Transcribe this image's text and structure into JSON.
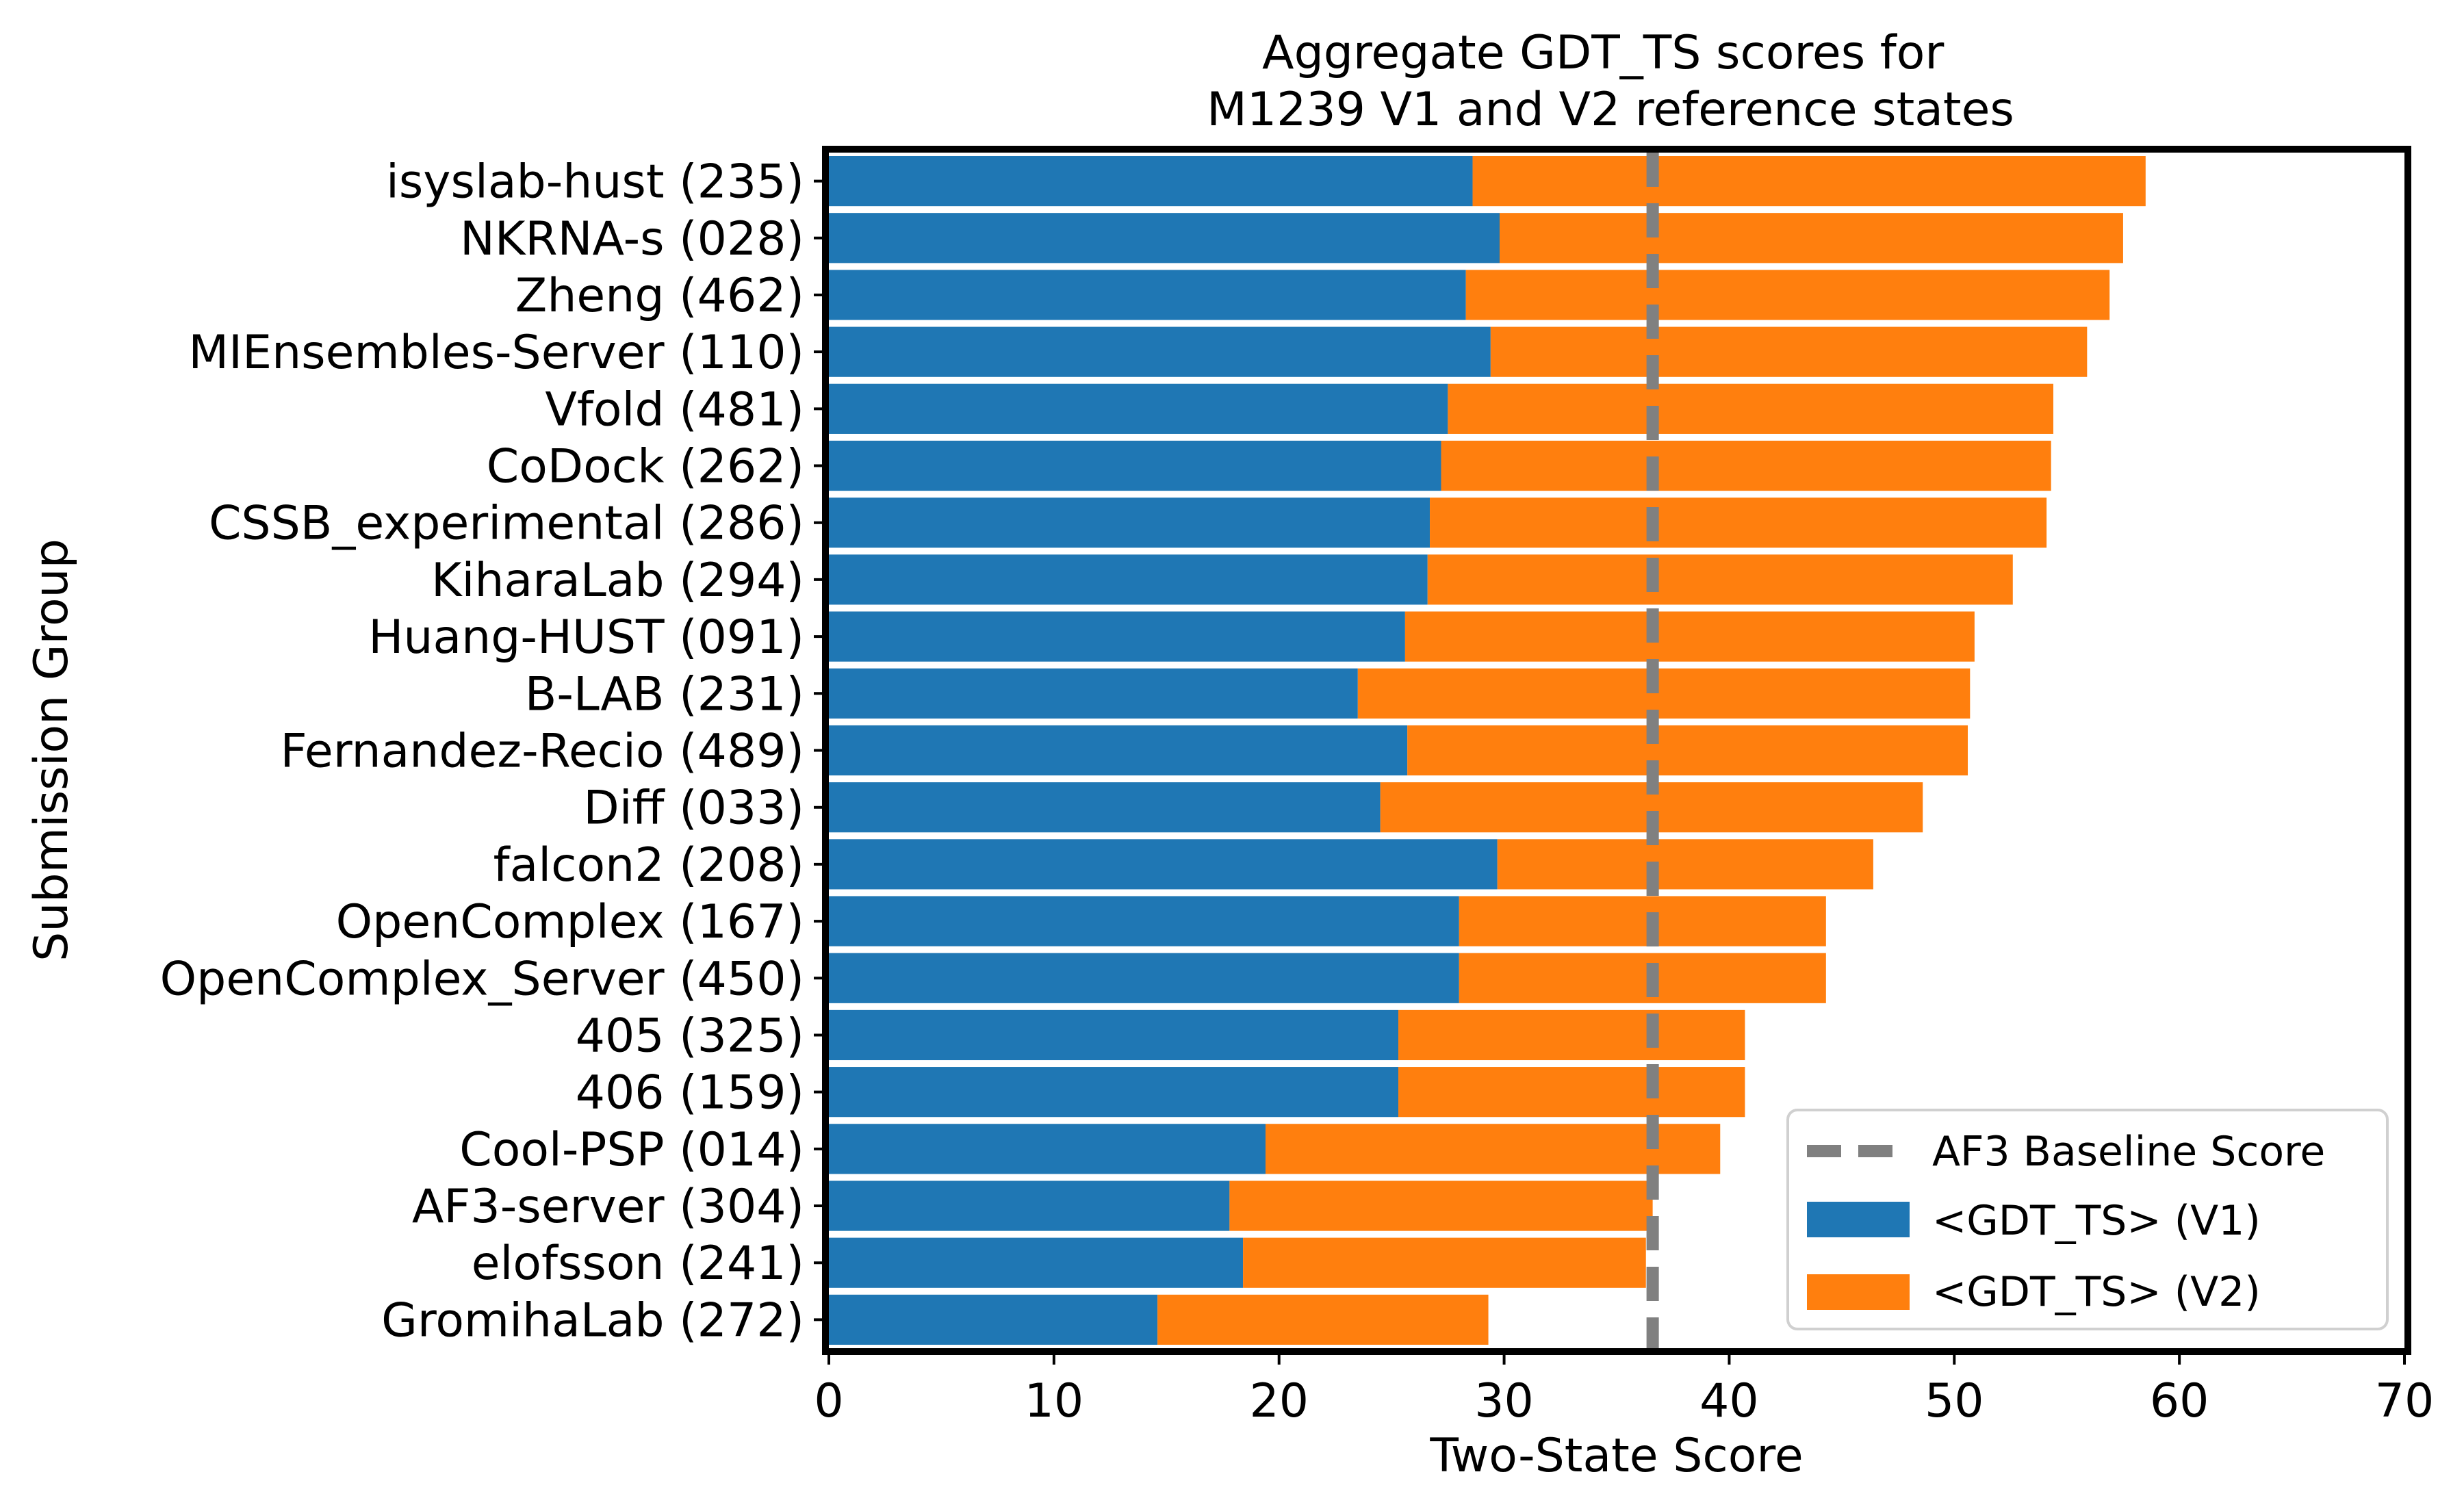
{
  "chart_data": {
    "type": "bar",
    "orientation": "horizontal",
    "stacked": true,
    "title": "Aggregate GDT_TS scores for\nM1239 V1 and V2 reference states",
    "title_lines": [
      "Aggregate GDT_TS scores for",
      "M1239 V1 and V2 reference states"
    ],
    "xlabel": "Two-State Score",
    "ylabel": "Submission Group",
    "xlim": [
      0,
      70
    ],
    "xticks": [
      0,
      10,
      20,
      30,
      40,
      50,
      60,
      70
    ],
    "categories": [
      "isyslab-hust (235)",
      "NKRNA-s (028)",
      "Zheng (462)",
      "MIEnsembles-Server (110)",
      "Vfold (481)",
      "CoDock (262)",
      "CSSB_experimental (286)",
      "KiharaLab (294)",
      "Huang-HUST (091)",
      "B-LAB (231)",
      "Fernandez-Recio (489)",
      "Diff (033)",
      "falcon2 (208)",
      "OpenComplex (167)",
      "OpenComplex_Server (450)",
      "405 (325)",
      "406 (159)",
      "Cool-PSP (014)",
      "AF3-server (304)",
      "elofsson (241)",
      "GromihaLab (272)"
    ],
    "series": [
      {
        "name": "<GDT_TS> (V1)",
        "color": "#1f77b4",
        "values": [
          28.6,
          29.8,
          28.3,
          29.4,
          27.5,
          27.2,
          26.7,
          26.6,
          25.6,
          23.5,
          25.7,
          24.5,
          29.7,
          28.0,
          28.0,
          25.3,
          25.3,
          19.4,
          17.8,
          18.4,
          14.6
        ]
      },
      {
        "name": "<GDT_TS> (V2)",
        "color": "#ff7f0e",
        "values": [
          29.9,
          27.7,
          28.6,
          26.5,
          26.9,
          27.1,
          27.4,
          26.0,
          25.3,
          27.2,
          24.9,
          24.1,
          16.7,
          16.3,
          16.3,
          15.4,
          15.4,
          20.2,
          18.8,
          17.9,
          14.7
        ]
      }
    ],
    "reference_line": {
      "name": "AF3 Baseline Score",
      "value": 36.6,
      "color": "#808080",
      "style": "dashed"
    },
    "legend": {
      "position": "bottom-right",
      "entries": [
        "AF3 Baseline Score",
        "<GDT_TS> (V1)",
        "<GDT_TS> (V2)"
      ]
    },
    "grid": false
  }
}
